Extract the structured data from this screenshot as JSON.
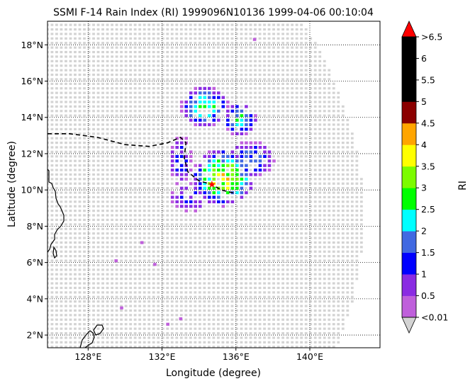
{
  "chart_data": {
    "type": "heatmap",
    "title": "SSMI F-14 Rain Index (RI) 1999096N10136 1999-04-06 00:10:04",
    "xlabel": "Longitude (degree)",
    "ylabel": "Latitude (degree)",
    "xlim": [
      125.8,
      143.8
    ],
    "ylim": [
      1.3,
      19.3
    ],
    "x_ticks": [
      {
        "value": 128,
        "label": "128°E"
      },
      {
        "value": 132,
        "label": "132°E"
      },
      {
        "value": 136,
        "label": "136°E"
      },
      {
        "value": 140,
        "label": "140°E"
      }
    ],
    "y_ticks": [
      {
        "value": 2,
        "label": "2°N"
      },
      {
        "value": 4,
        "label": "4°N"
      },
      {
        "value": 6,
        "label": "6°N"
      },
      {
        "value": 8,
        "label": "8°N"
      },
      {
        "value": 10,
        "label": "10°N"
      },
      {
        "value": 12,
        "label": "12°N"
      },
      {
        "value": 14,
        "label": "14°N"
      },
      {
        "value": 16,
        "label": "16°N"
      },
      {
        "value": 18,
        "label": "18°N"
      }
    ],
    "grid": true,
    "colorbar": {
      "label": "RI",
      "placement": "right",
      "tick_labels": [
        "<0.01",
        "0.5",
        "1",
        "1.5",
        "2",
        "2.5",
        "3",
        "3.5",
        "4",
        "4.5",
        "5",
        "5.5",
        "6",
        ">6.5"
      ],
      "colors": [
        "#bf5fdb",
        "#8a2be2",
        "#0000ff",
        "#4169e1",
        "#00ffff",
        "#00ff00",
        "#7cfc00",
        "#ffff00",
        "#ffa500",
        "#8b0000",
        "#000000",
        "#000000",
        "#000000"
      ],
      "over_color": "#ff0000",
      "under_color": "#d3d3d3"
    },
    "no_rain_color": "#d3d3d3",
    "storm_center": {
      "lon": 134.7,
      "lat": 10.3,
      "color": "#ff0000"
    },
    "track": [
      {
        "lon": 125.8,
        "lat": 13.1
      },
      {
        "lon": 127.0,
        "lat": 13.1
      },
      {
        "lon": 128.5,
        "lat": 12.9
      },
      {
        "lon": 130.0,
        "lat": 12.5
      },
      {
        "lon": 131.3,
        "lat": 12.4
      },
      {
        "lon": 132.3,
        "lat": 12.6
      },
      {
        "lon": 133.0,
        "lat": 12.9
      },
      {
        "lon": 133.3,
        "lat": 12.6
      },
      {
        "lon": 133.2,
        "lat": 11.8
      },
      {
        "lon": 133.4,
        "lat": 11.0
      },
      {
        "lon": 134.0,
        "lat": 10.5
      },
      {
        "lon": 134.7,
        "lat": 10.3
      },
      {
        "lon": 135.2,
        "lat": 10.0
      },
      {
        "lon": 136.0,
        "lat": 9.8
      }
    ],
    "rain_clusters": [
      {
        "lon": 135.3,
        "lat": 10.7,
        "rx": 1.7,
        "ry": 1.6,
        "peak": 3.5
      },
      {
        "lon": 134.3,
        "lat": 14.6,
        "rx": 1.3,
        "ry": 1.1,
        "peak": 2.5
      },
      {
        "lon": 136.2,
        "lat": 13.9,
        "rx": 0.9,
        "ry": 0.9,
        "peak": 2.3
      },
      {
        "lon": 136.8,
        "lat": 11.7,
        "rx": 1.3,
        "ry": 1.0,
        "peak": 1.6
      },
      {
        "lon": 133.0,
        "lat": 11.6,
        "rx": 0.6,
        "ry": 1.5,
        "peak": 1.2
      },
      {
        "lon": 133.5,
        "lat": 9.6,
        "rx": 1.2,
        "ry": 0.8,
        "peak": 1.0
      }
    ]
  }
}
